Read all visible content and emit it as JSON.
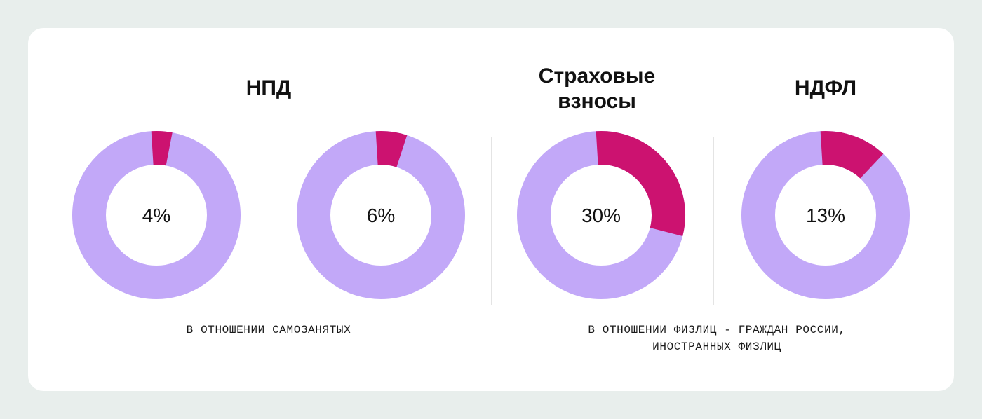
{
  "colors": {
    "track": "#c2a8f8",
    "value": "#cc1270",
    "background": "#e8eeec",
    "card": "#ffffff"
  },
  "headings": {
    "npd": "НПД",
    "insurance": "Страховые\nвзносы",
    "ndfl": "НДФЛ"
  },
  "captions": {
    "self_employed": "В ОТНОШЕНИИ САМОЗАНЯТЫХ",
    "individuals": "В ОТНОШЕНИИ ФИЗЛИЦ - ГРАЖДАН РОССИИ,\nИНОСТРАННЫХ ФИЗЛИЦ"
  },
  "chart_data": [
    {
      "type": "pie",
      "label": "4%",
      "values": [
        4,
        96
      ]
    },
    {
      "type": "pie",
      "label": "6%",
      "values": [
        6,
        94
      ]
    },
    {
      "type": "pie",
      "label": "30%",
      "values": [
        30,
        70
      ]
    },
    {
      "type": "pie",
      "label": "13%",
      "values": [
        13,
        87
      ]
    }
  ]
}
